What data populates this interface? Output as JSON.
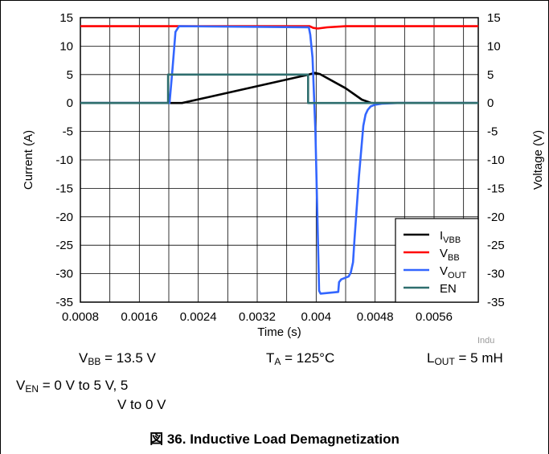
{
  "chart_data": {
    "type": "line",
    "xlabel": "Time (s)",
    "ylabel_left": "Current (A)",
    "ylabel_right": "Voltage (V)",
    "xlim": [
      0.0008,
      0.0062
    ],
    "ylim": [
      -35,
      15
    ],
    "x_ticks": [
      0.0008,
      0.0016,
      0.0024,
      0.0032,
      0.004,
      0.0048,
      0.0056
    ],
    "x_tick_labels": [
      "0.0008",
      "0.0016",
      "0.0024",
      "0.0032",
      "0.004",
      "0.0048",
      "0.0056"
    ],
    "y_ticks": [
      15,
      10,
      5,
      0,
      -5,
      -10,
      -15,
      -20,
      -25,
      -30,
      -35
    ],
    "y_tick_labels": [
      "15",
      "10",
      "5",
      "0",
      "-5",
      "-10",
      "-15",
      "-20",
      "-25",
      "-30",
      "-35"
    ],
    "grid": true,
    "legend_position": "bottom-right",
    "series": [
      {
        "key": "IVBB",
        "name": "IVBB",
        "legend_main": "I",
        "legend_sub": "VBB",
        "color": "#000000",
        "x": [
          0.0008,
          0.00205,
          0.00218,
          0.0039,
          0.00398,
          0.00405,
          0.0044,
          0.00462,
          0.00475,
          0.0062
        ],
        "y": [
          0,
          0,
          0,
          5.0,
          5.3,
          5.1,
          2.6,
          0.6,
          0,
          0
        ]
      },
      {
        "key": "VBB",
        "name": "VBB",
        "legend_main": "V",
        "legend_sub": "BB",
        "color": "#ff0000",
        "x": [
          0.0008,
          0.00391,
          0.00396,
          0.00402,
          0.00415,
          0.0044,
          0.0062
        ],
        "y": [
          13.5,
          13.5,
          13.2,
          13.1,
          13.3,
          13.5,
          13.5
        ]
      },
      {
        "key": "VOUT",
        "name": "VOUT",
        "legend_main": "V",
        "legend_sub": "OUT",
        "color": "#3366ff",
        "x": [
          0.0008,
          0.00201,
          0.00205,
          0.00209,
          0.00214,
          0.0039,
          0.00392,
          0.00395,
          0.00399,
          0.00402,
          0.00404,
          0.00406,
          0.0043,
          0.00431,
          0.00434,
          0.00444,
          0.00447,
          0.0045,
          0.00452,
          0.00458,
          0.00464,
          0.00467,
          0.0047,
          0.00474,
          0.0048,
          0.0049,
          0.0051,
          0.0062
        ],
        "y": [
          0,
          0,
          6,
          12.5,
          13.5,
          13.3,
          12,
          8,
          -5,
          -22,
          -33,
          -33.5,
          -33.2,
          -31.5,
          -31,
          -30.5,
          -29.8,
          -28,
          -24,
          -13,
          -4,
          -2,
          -1.2,
          -0.6,
          -0.3,
          -0.1,
          0,
          0
        ]
      },
      {
        "key": "EN",
        "name": "EN",
        "legend_main": "EN",
        "legend_sub": "",
        "color": "#2e6e6e",
        "x": [
          0.0008,
          0.00199,
          0.00199,
          0.00389,
          0.00389,
          0.0062
        ],
        "y": [
          0,
          0,
          5,
          5,
          0,
          0
        ]
      }
    ]
  },
  "conditions": {
    "vbb": {
      "main": "V",
      "sub": "BB",
      "rest": " = 13.5 V"
    },
    "ta": {
      "main": "T",
      "sub": "A",
      "rest": " = 125°C"
    },
    "lout": {
      "main": "L",
      "sub": "OUT",
      "rest": " = 5 mH"
    },
    "ven": {
      "main": "V",
      "sub": "EN",
      "rest": " = 0 V to 5 V, 5",
      "line2": "V to 0 V"
    }
  },
  "watermark": "Indu",
  "caption": "図 36. Inductive Load Demagnetization"
}
